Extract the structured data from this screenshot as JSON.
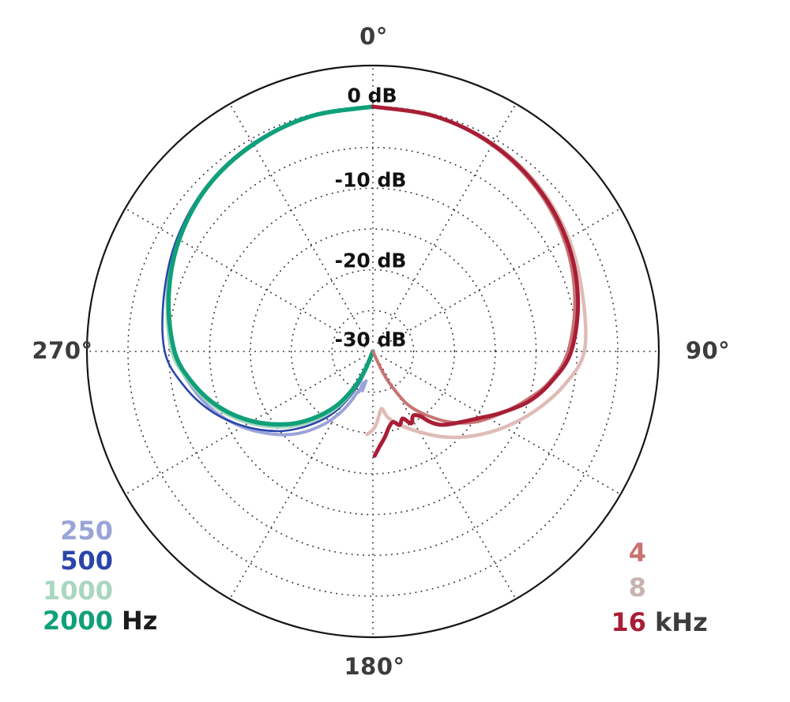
{
  "chart_data": {
    "type": "line",
    "subtype": "polar-pattern",
    "description": "Microphone polar pattern: normalized level vs angle, low frequencies plotted on left half, high frequencies on right half",
    "r_axis": {
      "unit": "dB",
      "tick_labels": [
        "0 dB",
        "-10 dB",
        "-20 dB",
        "-30 dB"
      ],
      "ticks_db": [
        0,
        -10,
        -20,
        -30
      ],
      "min_db": -30,
      "max_db": 0,
      "grid_circles_db": [
        0,
        -5,
        -10,
        -15,
        -20,
        -25
      ]
    },
    "theta_axis": {
      "unit": "degrees",
      "labels": [
        "0°",
        "90°",
        "180°",
        "270°"
      ],
      "spokes_deg": [
        0,
        30,
        60,
        90,
        120,
        150,
        180,
        210,
        240,
        270,
        300,
        330
      ]
    },
    "grid": {
      "style": "dotted",
      "dot_color": "#3a3a3a",
      "outer_ring_color": "#161616"
    },
    "series": [
      {
        "name": "250 Hz",
        "side": "left",
        "color": "#9aa4d9",
        "width": 4,
        "points": [
          [
            0,
            0
          ],
          [
            15,
            -0.2
          ],
          [
            30,
            -0.6
          ],
          [
            45,
            -1.3
          ],
          [
            60,
            -2.4
          ],
          [
            75,
            -3.9
          ],
          [
            90,
            -5.6
          ],
          [
            100,
            -7.2
          ],
          [
            110,
            -9.1
          ],
          [
            120,
            -11.5
          ],
          [
            130,
            -14.2
          ],
          [
            138,
            -16.5
          ],
          [
            146,
            -19.2
          ],
          [
            152,
            -21.5
          ],
          [
            156,
            -23.2
          ],
          [
            159,
            -24.6
          ],
          [
            161,
            -24.8
          ],
          [
            163,
            -26.0
          ],
          [
            165,
            -25.0
          ],
          [
            167,
            -26.3
          ]
        ]
      },
      {
        "name": "500 Hz",
        "side": "left",
        "color": "#2b45a9",
        "width": 2.6,
        "points": [
          [
            0,
            0
          ],
          [
            15,
            -0.2
          ],
          [
            30,
            -0.6
          ],
          [
            45,
            -1.3
          ],
          [
            60,
            -2.3
          ],
          [
            75,
            -3.5
          ],
          [
            90,
            -4.5
          ],
          [
            100,
            -6.4
          ],
          [
            110,
            -8.8
          ],
          [
            120,
            -11.7
          ],
          [
            130,
            -14.8
          ],
          [
            138,
            -17.6
          ],
          [
            146,
            -20.5
          ],
          [
            152,
            -23.2
          ],
          [
            158,
            -26.3
          ],
          [
            163,
            -29.6
          ]
        ]
      },
      {
        "name": "1000 Hz",
        "side": "left",
        "color": "#a9d6c0",
        "width": 3,
        "points": [
          [
            0,
            0
          ],
          [
            15,
            -0.2
          ],
          [
            30,
            -0.7
          ],
          [
            45,
            -1.4
          ],
          [
            60,
            -2.5
          ],
          [
            75,
            -3.9
          ],
          [
            90,
            -5.3
          ],
          [
            100,
            -7.3
          ],
          [
            110,
            -9.6
          ],
          [
            120,
            -12.4
          ],
          [
            130,
            -15.5
          ],
          [
            138,
            -18.2
          ],
          [
            146,
            -21.1
          ],
          [
            152,
            -23.8
          ],
          [
            158,
            -26.9
          ],
          [
            162,
            -30
          ]
        ]
      },
      {
        "name": "2000 Hz",
        "side": "left",
        "color": "#0fa07a",
        "width": 5.5,
        "points": [
          [
            0,
            0
          ],
          [
            15,
            -0.2
          ],
          [
            30,
            -0.7
          ],
          [
            45,
            -1.4
          ],
          [
            60,
            -2.6
          ],
          [
            75,
            -4.1
          ],
          [
            90,
            -5.7
          ],
          [
            100,
            -7.6
          ],
          [
            110,
            -10.0
          ],
          [
            120,
            -12.9
          ],
          [
            130,
            -16.1
          ],
          [
            138,
            -18.9
          ],
          [
            146,
            -21.9
          ],
          [
            152,
            -24.7
          ],
          [
            157,
            -27.3
          ],
          [
            161,
            -30
          ]
        ]
      },
      {
        "name": "8 kHz",
        "side": "right",
        "color": "#dfbcb7",
        "width": 4.5,
        "points": [
          [
            0,
            0
          ],
          [
            15,
            -0.2
          ],
          [
            30,
            -0.6
          ],
          [
            45,
            -1.3
          ],
          [
            60,
            -2.3
          ],
          [
            75,
            -3.4
          ],
          [
            90,
            -4.1
          ],
          [
            100,
            -6.2
          ],
          [
            110,
            -8.8
          ],
          [
            120,
            -11.4
          ],
          [
            130,
            -13.9
          ],
          [
            140,
            -16.3
          ],
          [
            150,
            -18.6
          ],
          [
            158,
            -20.1
          ],
          [
            164,
            -21.1
          ],
          [
            168,
            -21.9
          ],
          [
            171,
            -22.9
          ],
          [
            174,
            -22.3
          ],
          [
            177,
            -21.2
          ],
          [
            180,
            -20.4
          ],
          [
            184,
            -19.8
          ]
        ]
      },
      {
        "name": "4 kHz",
        "side": "right",
        "color": "#c97372",
        "width": 4,
        "points": [
          [
            0,
            0
          ],
          [
            15,
            -0.2
          ],
          [
            30,
            -0.8
          ],
          [
            45,
            -1.7
          ],
          [
            60,
            -2.9
          ],
          [
            75,
            -4.4
          ],
          [
            90,
            -6.1
          ],
          [
            100,
            -8.1
          ],
          [
            108,
            -10.4
          ],
          [
            116,
            -12.6
          ],
          [
            124,
            -14.6
          ],
          [
            132,
            -17.0
          ],
          [
            140,
            -19.8
          ],
          [
            147,
            -22.3
          ],
          [
            152,
            -25.4
          ],
          [
            155,
            -27.4
          ],
          [
            158,
            -30
          ]
        ]
      },
      {
        "name": "16 kHz",
        "side": "right",
        "color": "#a81e36",
        "width": 5,
        "points": [
          [
            0,
            0
          ],
          [
            15,
            -0.2
          ],
          [
            30,
            -0.7
          ],
          [
            45,
            -1.5
          ],
          [
            60,
            -2.6
          ],
          [
            75,
            -4.0
          ],
          [
            90,
            -5.7
          ],
          [
            100,
            -7.9
          ],
          [
            108,
            -10.0
          ],
          [
            116,
            -12.7
          ],
          [
            122,
            -14.6
          ],
          [
            130,
            -16.4
          ],
          [
            137,
            -17.7
          ],
          [
            141,
            -18.9
          ],
          [
            144,
            -20.2
          ],
          [
            148,
            -20.7
          ],
          [
            152,
            -20.0
          ],
          [
            156,
            -21.0
          ],
          [
            160,
            -20.4
          ],
          [
            164,
            -21.0
          ],
          [
            168,
            -20.5
          ],
          [
            172,
            -19.4
          ],
          [
            176,
            -18.3
          ],
          [
            179,
            -17.2
          ]
        ]
      }
    ],
    "legend_left": {
      "unit": "Hz",
      "items": [
        {
          "label": "250",
          "color": "#9aa4d9"
        },
        {
          "label": "500",
          "color": "#2b45a9"
        },
        {
          "label": "1000",
          "color": "#a9d6c0"
        },
        {
          "label": "2000",
          "color": "#0fa07a"
        }
      ]
    },
    "legend_right": {
      "unit": "kHz",
      "items": [
        {
          "label": "4",
          "color": "#c97372"
        },
        {
          "label": "8",
          "color": "#c7b3b1"
        },
        {
          "label": "16",
          "color": "#a81e36"
        }
      ]
    }
  },
  "labels": {
    "deg0": "0°",
    "deg90": "90°",
    "deg180": "180°",
    "deg270": "270°",
    "db0": "0 dB",
    "db10": "-10 dB",
    "db20": "-20 dB",
    "db30": "-30 dB"
  }
}
